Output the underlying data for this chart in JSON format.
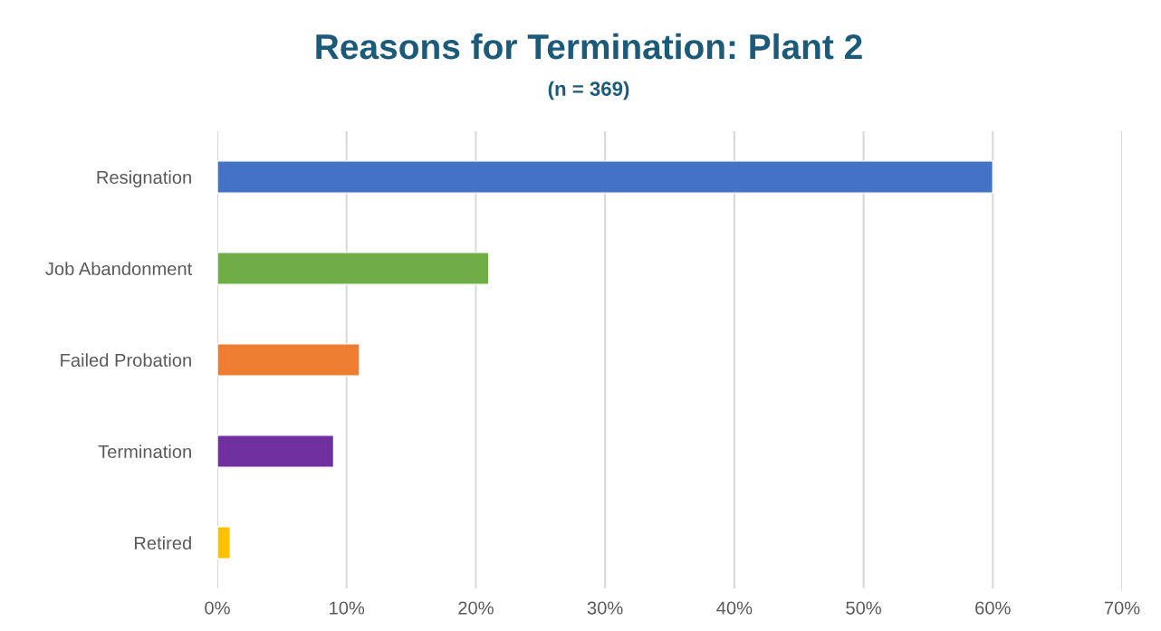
{
  "chart_data": {
    "type": "bar",
    "orientation": "horizontal",
    "title": "Reasons for Termination: Plant 2",
    "subtitle": "(n = 369)",
    "categories": [
      "Resignation",
      "Job Abandonment",
      "Failed Probation",
      "Termination",
      "Retired"
    ],
    "values": [
      60,
      21,
      11,
      9,
      1
    ],
    "colors": [
      "#4472c4",
      "#70ad47",
      "#ed7d31",
      "#7030a0",
      "#ffc000"
    ],
    "xlim": [
      0,
      70
    ],
    "xticks": [
      {
        "value": 0,
        "label": "0%"
      },
      {
        "value": 10,
        "label": "10%"
      },
      {
        "value": 20,
        "label": "20%"
      },
      {
        "value": 30,
        "label": "30%"
      },
      {
        "value": 40,
        "label": "40%"
      },
      {
        "value": 50,
        "label": "50%"
      },
      {
        "value": 60,
        "label": "60%"
      },
      {
        "value": 70,
        "label": "70%"
      }
    ],
    "grid": "x",
    "legend": false
  }
}
